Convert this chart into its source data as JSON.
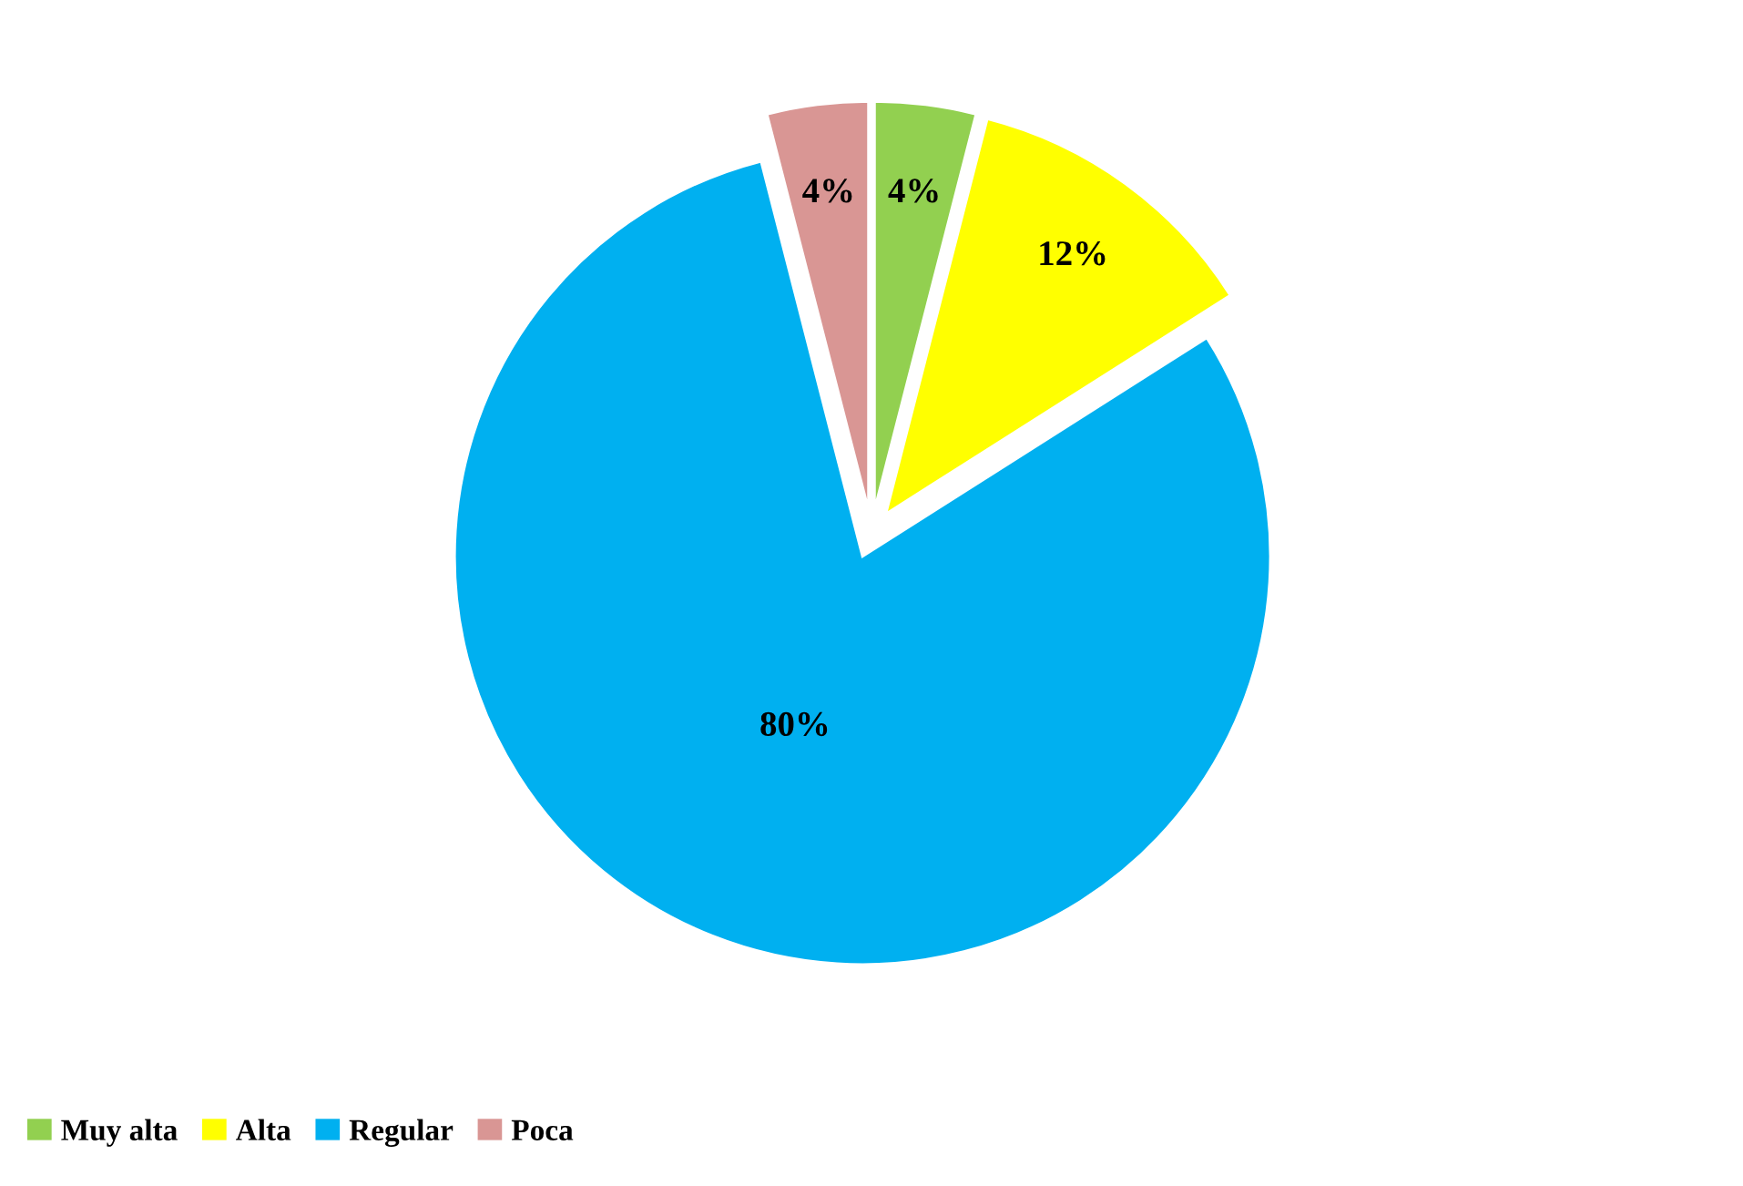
{
  "chart_data": {
    "type": "pie",
    "categories": [
      "Muy alta",
      "Alta",
      "Regular",
      "Poca"
    ],
    "values": [
      4,
      12,
      80,
      4
    ],
    "colors": [
      "#92d050",
      "#ffff00",
      "#00b0f0",
      "#d99694"
    ],
    "value_labels": [
      "4%",
      "12%",
      "80%",
      "4%"
    ],
    "legend": "bottom left"
  }
}
